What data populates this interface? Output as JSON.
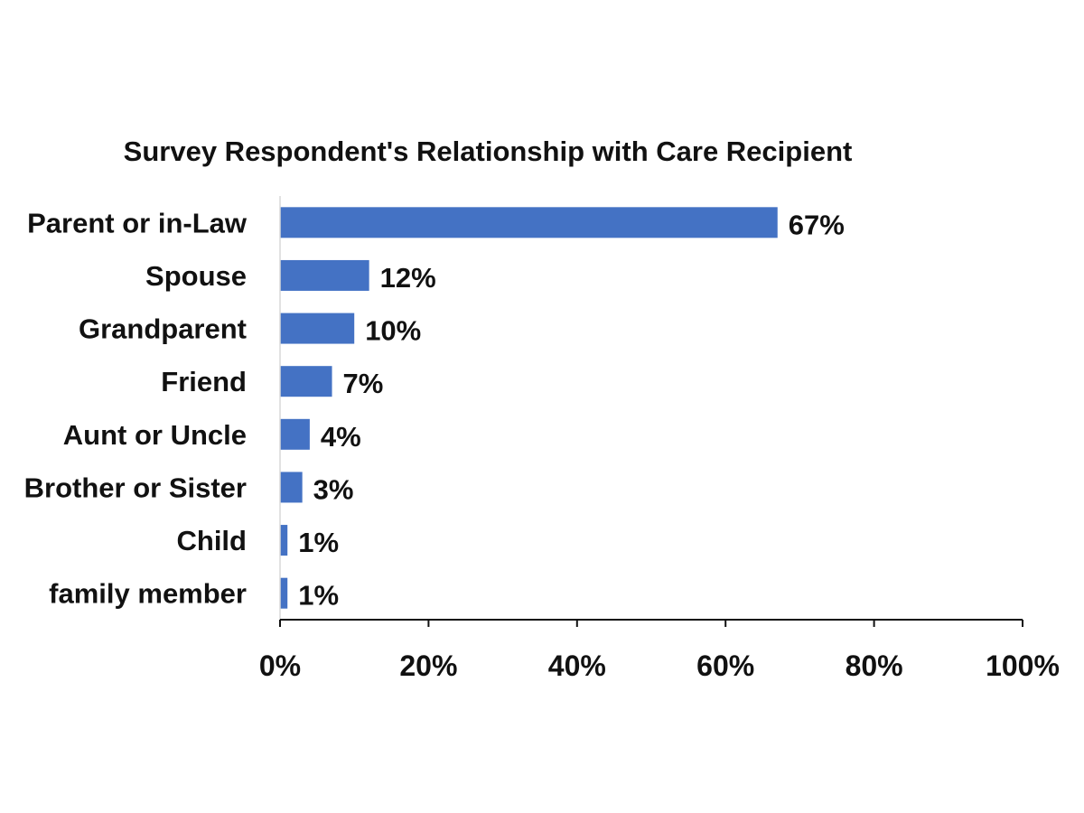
{
  "chart_data": {
    "type": "bar",
    "orientation": "horizontal",
    "title": "Survey Respondent's Relationship with Care Recipient",
    "categories": [
      "Parent or in-Law",
      "Spouse",
      "Grandparent",
      "Friend",
      "Aunt or Uncle",
      "Brother or Sister",
      "Child",
      "family member"
    ],
    "values": [
      67,
      12,
      10,
      7,
      4,
      3,
      1,
      1
    ],
    "data_labels": [
      "67%",
      "12%",
      "10%",
      "7%",
      "4%",
      "3%",
      "1%",
      "1%"
    ],
    "xlim": [
      0,
      100
    ],
    "x_ticks": [
      0,
      20,
      40,
      60,
      80,
      100
    ],
    "x_tick_labels": [
      "0%",
      "20%",
      "40%",
      "60%",
      "80%",
      "100%"
    ],
    "xlabel": "",
    "ylabel": "",
    "grid": false,
    "legend": "none",
    "bar_color": "#4472C4"
  }
}
